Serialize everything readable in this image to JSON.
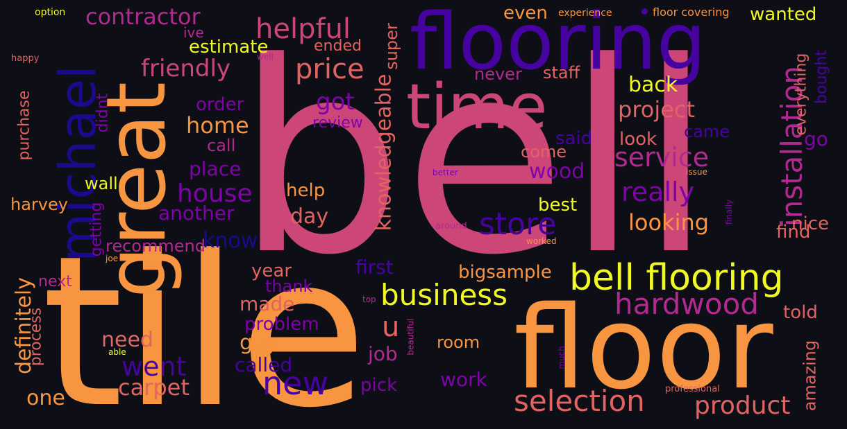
{
  "palette": {
    "background": "#0e0f16",
    "pink": "#cc4778",
    "orange": "#f89540",
    "yellow": "#f0f921",
    "purple": "#7e03a8",
    "indigo": "#46039f",
    "deep_blue": "#1a0a8c",
    "magenta": "#b12a90",
    "salmon": "#e16462"
  },
  "words": [
    "bell",
    "tile",
    "floor",
    "flooring",
    "great",
    "michael",
    "time",
    "bell flooring",
    "hardwood",
    "selection",
    "business",
    "store",
    "new",
    "installation",
    "product",
    "service",
    "really",
    "price",
    "helpful",
    "contractor",
    "friendly",
    "house",
    "home",
    "project",
    "knowledgeable",
    "went",
    "carpet",
    "looking",
    "got",
    "u",
    "back",
    "wood",
    "even",
    "wanted",
    "estimate",
    "order",
    "place",
    "another",
    "know",
    "day",
    "help",
    "best",
    "nice",
    "find",
    "told",
    "amazing",
    "everything",
    "bought",
    "go",
    "came",
    "said",
    "look",
    "come",
    "staff",
    "never",
    "super",
    "ended",
    "ive",
    "review",
    "call",
    "didnt",
    "purchase",
    "wall",
    "harvey",
    "getting",
    "recommend",
    "definitely",
    "process",
    "next",
    "one",
    "need",
    "made",
    "problem",
    "year",
    "thank",
    "first",
    "bigsample",
    "called",
    "guy",
    "job",
    "pick",
    "work",
    "room",
    "experience",
    "floor covering",
    "option",
    "happy",
    "well",
    "joe",
    "better",
    "issue",
    "around",
    "worked",
    "finally",
    "top",
    "beautiful",
    "able",
    "much",
    "professional"
  ]
}
